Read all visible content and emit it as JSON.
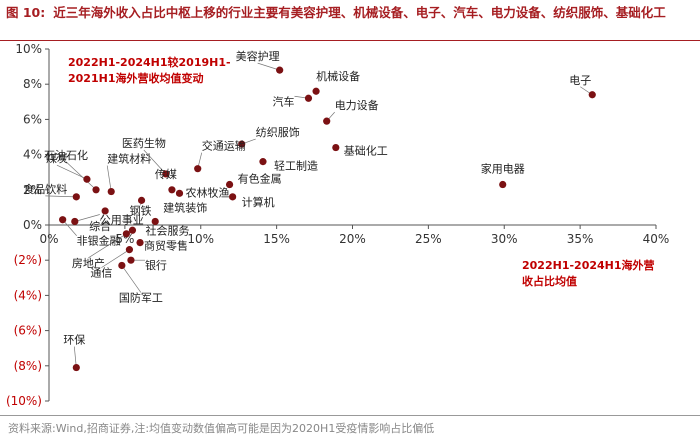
{
  "figure_number": "图 10:",
  "title": "近三年海外收入占比中枢上移的行业主要有美容护理、机械设备、电子、汽车、电力设备、纺织服饰、基础化工",
  "source": "资料来源:Wind,招商证券,注:均值变动数值偏高可能是因为2020H1受疫情影响占比偏低",
  "colors": {
    "point": "#7b1113",
    "accent": "#c00000",
    "title": "#a61e22"
  },
  "chart_data": {
    "type": "scatter",
    "title": "近三年海外收入占比中枢上移的行业主要有美容护理、机械设备、电子、汽车、电力设备、纺织服饰、基础化工",
    "xlabel": "2022H1-2024H1海外营收占比均值",
    "ylabel": "2022H1-2024H1较2019H1-2021H1海外营收均值变动",
    "xlim": [
      0,
      40
    ],
    "ylim": [
      -10,
      10
    ],
    "x_ticks": [
      "0%",
      "5%",
      "10%",
      "15%",
      "20%",
      "25%",
      "30%",
      "35%",
      "40%"
    ],
    "y_ticks": [
      "10%",
      "8%",
      "6%",
      "4%",
      "2%",
      "0%",
      "(2%)",
      "(4%)",
      "(6%)",
      "(8%)",
      "(10%)"
    ],
    "annotation_y": [
      "2022H1-2024H1较2019H1-",
      "2021H1海外营收均值变动"
    ],
    "annotation_x": [
      "2022H1-2024H1海外营",
      "收占比均值"
    ],
    "points": [
      {
        "name": "美容护理",
        "x": 15.2,
        "y": 8.8
      },
      {
        "name": "机械设备",
        "x": 17.6,
        "y": 7.6
      },
      {
        "name": "汽车",
        "x": 17.1,
        "y": 7.2
      },
      {
        "name": "电子",
        "x": 35.8,
        "y": 7.4
      },
      {
        "name": "电力设备",
        "x": 18.3,
        "y": 5.9
      },
      {
        "name": "纺织服饰",
        "x": 12.7,
        "y": 4.6
      },
      {
        "name": "基础化工",
        "x": 18.9,
        "y": 4.4
      },
      {
        "name": "轻工制造",
        "x": 14.1,
        "y": 3.6
      },
      {
        "name": "家用电器",
        "x": 29.9,
        "y": 2.3
      },
      {
        "name": "交通运输",
        "x": 9.8,
        "y": 3.2
      },
      {
        "name": "医药生物",
        "x": 7.7,
        "y": 2.9
      },
      {
        "name": "传媒",
        "x": 8.1,
        "y": 2.0
      },
      {
        "name": "农林牧渔",
        "x": 8.6,
        "y": 1.8
      },
      {
        "name": "有色金属",
        "x": 11.9,
        "y": 2.3
      },
      {
        "name": "计算机",
        "x": 12.1,
        "y": 1.6
      },
      {
        "name": "石油石化",
        "x": 3.1,
        "y": 2.0
      },
      {
        "name": "建筑材料",
        "x": 4.1,
        "y": 1.9
      },
      {
        "name": "煤炭",
        "x": 2.5,
        "y": 2.6
      },
      {
        "name": "食品饮料",
        "x": 1.8,
        "y": 1.6
      },
      {
        "name": "钢铁",
        "x": 6.1,
        "y": 1.4
      },
      {
        "name": "综合",
        "x": 3.7,
        "y": 0.8
      },
      {
        "name": "建筑装饰",
        "x": 7.0,
        "y": 0.2
      },
      {
        "name": "公用事业",
        "x": 1.7,
        "y": 0.2
      },
      {
        "name": "社会服务",
        "x": 5.5,
        "y": -0.3
      },
      {
        "name": "非银金融",
        "x": 0.9,
        "y": 0.3
      },
      {
        "name": "房地产",
        "x": 5.1,
        "y": -0.5
      },
      {
        "name": "商贸零售",
        "x": 6.0,
        "y": -1.0
      },
      {
        "name": "通信",
        "x": 5.3,
        "y": -1.4
      },
      {
        "name": "银行",
        "x": 5.4,
        "y": -2.0
      },
      {
        "name": "国防军工",
        "x": 4.8,
        "y": -2.3
      },
      {
        "name": "环保",
        "x": 1.8,
        "y": -8.1
      }
    ]
  }
}
